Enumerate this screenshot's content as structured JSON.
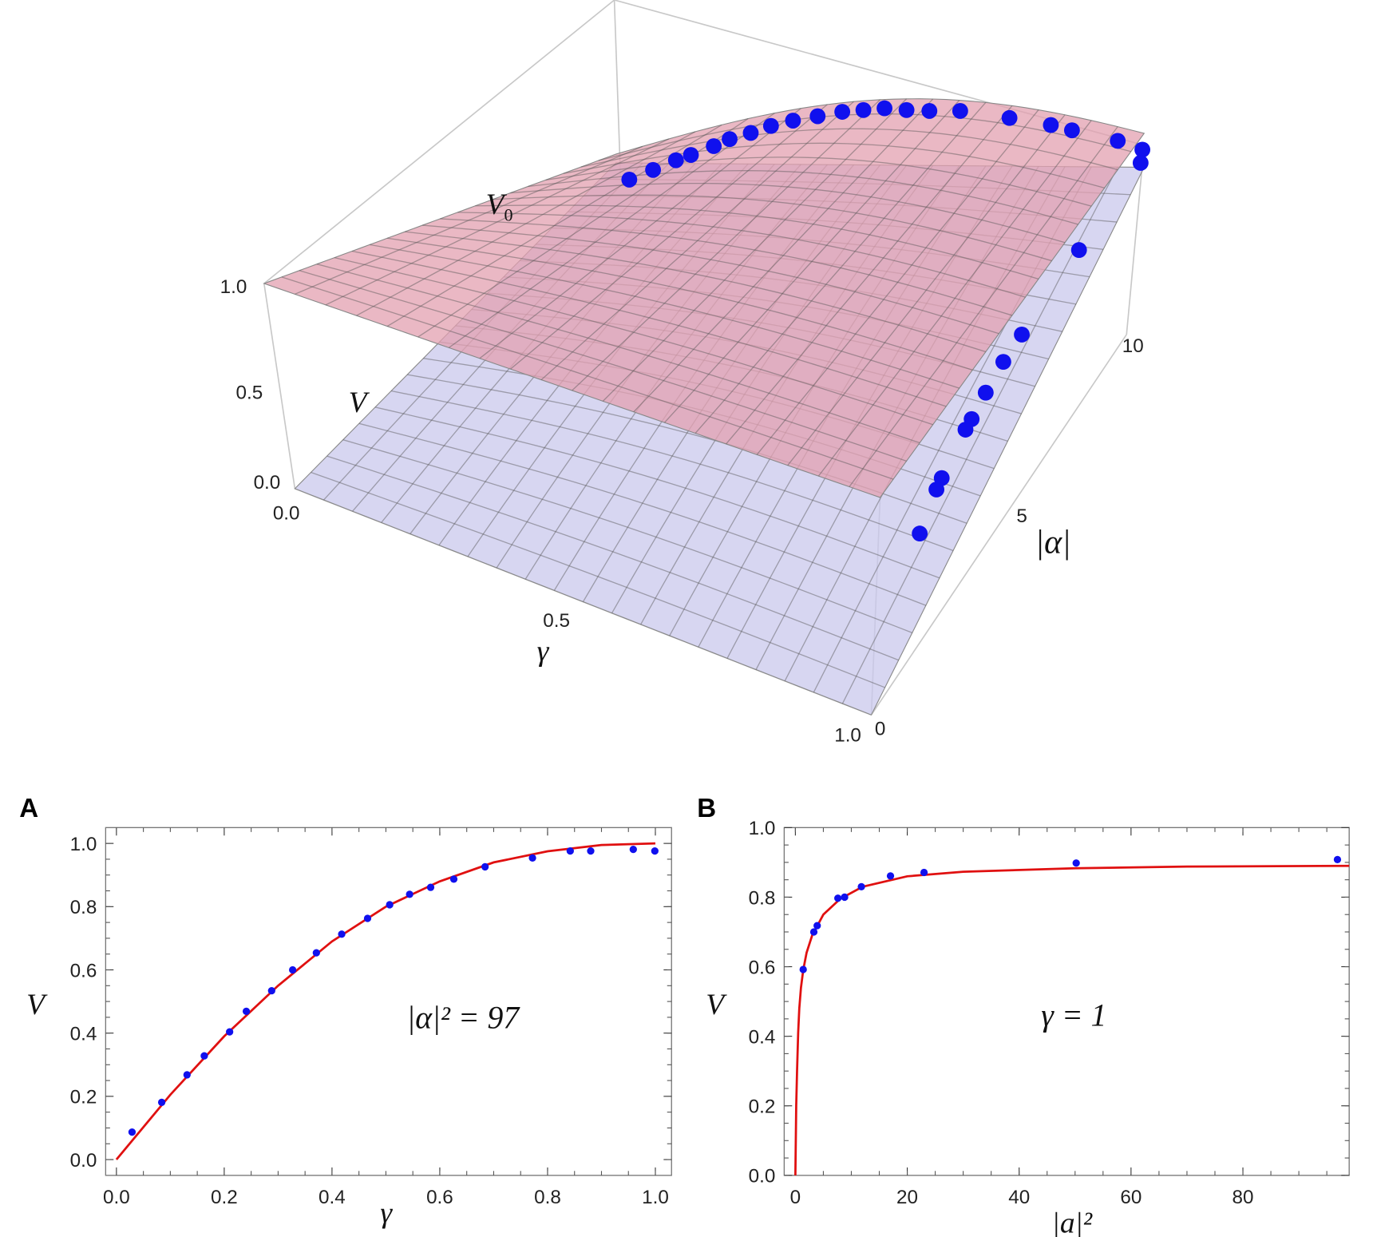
{
  "surface_plot": {
    "z_ticks": [
      "1.0",
      "0.5",
      "0.0"
    ],
    "gamma_ticks": [
      "0.0",
      "0.5",
      "1.0"
    ],
    "alpha_ticks": [
      "0",
      "5",
      "10"
    ],
    "label_v0": "V",
    "label_v0_sub": "0",
    "label_v": "V",
    "label_gamma": "γ",
    "label_alpha": "|α|",
    "colors": {
      "upper_surface": "#e3a0b0",
      "lower_surface": "#c9c8ec",
      "points": "#1010ee",
      "box": "#c8c8c8"
    }
  },
  "chart_data": [
    {
      "panel": "A",
      "type": "scatter",
      "xlabel": "γ",
      "ylabel": "V",
      "annotation": "|α|² = 97",
      "xlim": [
        -0.02,
        1.03
      ],
      "ylim": [
        -0.05,
        1.05
      ],
      "xticks": [
        "0.0",
        "0.2",
        "0.4",
        "0.6",
        "0.8",
        "1.0"
      ],
      "yticks": [
        "0.0",
        "0.2",
        "0.4",
        "0.6",
        "0.8",
        "1.0"
      ],
      "grid": false,
      "points_color": "#1010ee",
      "curve_color": "#e01010",
      "points": {
        "x": [
          0.029,
          0.084,
          0.131,
          0.163,
          0.21,
          0.241,
          0.288,
          0.327,
          0.371,
          0.418,
          0.466,
          0.507,
          0.544,
          0.583,
          0.626,
          0.684,
          0.772,
          0.842,
          0.88,
          0.959,
          0.999
        ],
        "y": [
          0.087,
          0.181,
          0.268,
          0.328,
          0.404,
          0.469,
          0.534,
          0.6,
          0.654,
          0.713,
          0.763,
          0.806,
          0.839,
          0.861,
          0.887,
          0.926,
          0.954,
          0.976,
          0.976,
          0.981,
          0.976
        ]
      },
      "curve": {
        "x": [
          0,
          0.1,
          0.2,
          0.3,
          0.4,
          0.5,
          0.6,
          0.7,
          0.8,
          0.9,
          1.0
        ],
        "y": [
          0,
          0.205,
          0.39,
          0.55,
          0.69,
          0.8,
          0.88,
          0.94,
          0.975,
          0.995,
          1.0
        ]
      }
    },
    {
      "panel": "B",
      "type": "scatter",
      "xlabel": "|a|²",
      "ylabel": "V",
      "annotation": "γ = 1",
      "xlim": [
        -2,
        99
      ],
      "ylim": [
        0,
        1.0
      ],
      "xticks": [
        "0",
        "20",
        "40",
        "60",
        "80"
      ],
      "yticks": [
        "0.0",
        "0.2",
        "0.4",
        "0.6",
        "0.8",
        "1.0"
      ],
      "grid": false,
      "points_color": "#1010ee",
      "curve_color": "#e01010",
      "points": {
        "x": [
          1.4,
          3.3,
          3.9,
          7.6,
          8.8,
          11.8,
          17.0,
          23.0,
          50.2,
          96.9
        ],
        "y": [
          0.592,
          0.7,
          0.718,
          0.797,
          0.8,
          0.83,
          0.861,
          0.871,
          0.898,
          0.908
        ]
      },
      "curve": {
        "x": [
          0,
          0.15,
          0.3,
          0.5,
          0.7,
          1.0,
          1.4,
          2,
          3,
          5,
          8,
          12,
          20,
          30,
          50,
          70,
          99
        ],
        "y": [
          0,
          0.2,
          0.3,
          0.41,
          0.48,
          0.54,
          0.59,
          0.64,
          0.69,
          0.75,
          0.795,
          0.83,
          0.86,
          0.873,
          0.883,
          0.888,
          0.89
        ]
      }
    }
  ]
}
